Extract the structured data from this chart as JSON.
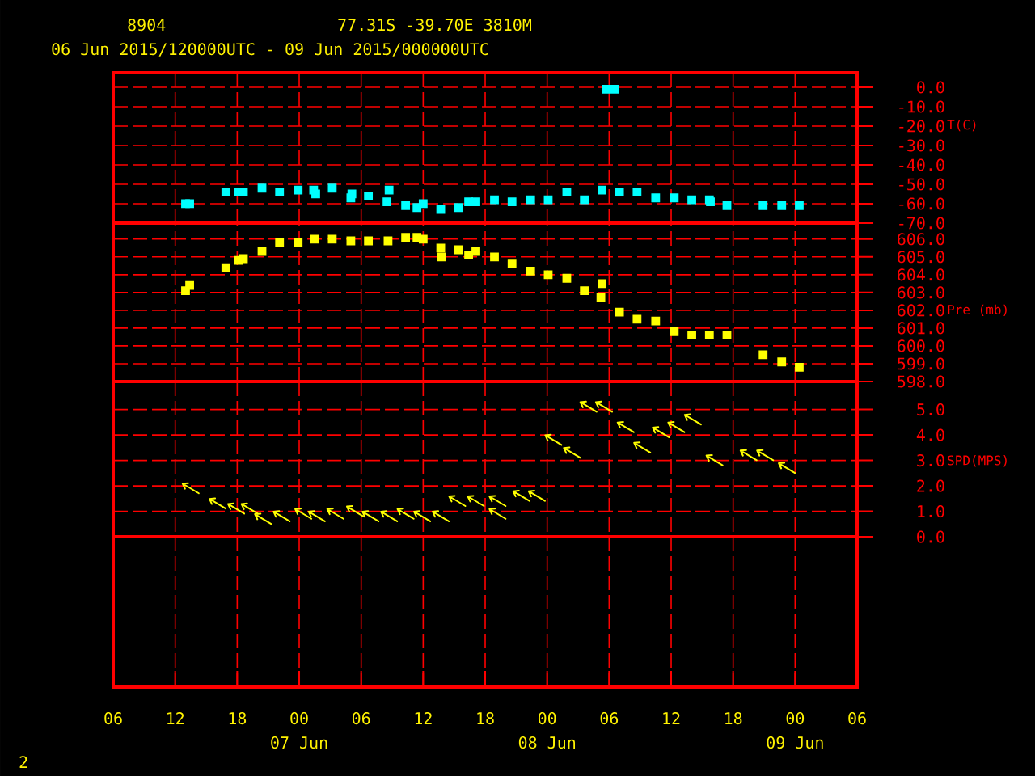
{
  "chart_data": [
    {
      "type": "scatter",
      "title": "8904",
      "subtitle": "06 Jun 2015/120000UTC - 09 Jun 2015/000000UTC",
      "annotations": [
        "77.31S -39.70E 3810M"
      ],
      "ylabel": "T(C)",
      "marker": "square",
      "grid": true,
      "tick_labels": "y",
      "xlim": [
        6,
        78
      ],
      "xticks": [
        {
          "value": 6,
          "label": null
        },
        {
          "value": 12,
          "label": null
        },
        {
          "value": 18,
          "label": null
        },
        {
          "value": 24,
          "label": null
        },
        {
          "value": 30,
          "label": null
        },
        {
          "value": 36,
          "label": null
        },
        {
          "value": 42,
          "label": null
        },
        {
          "value": 48,
          "label": null
        },
        {
          "value": 54,
          "label": null
        },
        {
          "value": 60,
          "label": null
        },
        {
          "value": 66,
          "label": null
        },
        {
          "value": 72,
          "label": null
        },
        {
          "value": 78,
          "label": null
        }
      ],
      "ylim": [
        -70,
        7.5
      ],
      "yticks": [
        {
          "value": 0,
          "label": "0.0"
        },
        {
          "value": -10,
          "label": "-10.0"
        },
        {
          "value": -20,
          "label": "-20.0"
        },
        {
          "value": -30,
          "label": "-30.0"
        },
        {
          "value": -40,
          "label": "-40.0"
        },
        {
          "value": -50,
          "label": "-50.0"
        },
        {
          "value": -60,
          "label": "-60.0"
        },
        {
          "value": -70,
          "label": "-70.0"
        }
      ],
      "series": [
        {
          "color": "#00ffff",
          "x": [
            13.0,
            13.4,
            16.9,
            18.1,
            18.6,
            20.4,
            22.1,
            23.9,
            25.4,
            25.6,
            27.2,
            29.0,
            29.1,
            30.7,
            32.5,
            32.7,
            34.3,
            35.4,
            36.0,
            37.7,
            39.4,
            40.4,
            41.1,
            42.9,
            44.6,
            46.4,
            48.1,
            49.9,
            51.6,
            53.3,
            53.7,
            54.5,
            55.0,
            56.7,
            58.5,
            60.3,
            62.0,
            63.7,
            63.8,
            65.4,
            68.9,
            70.7,
            72.4
          ],
          "values": [
            -60,
            -60,
            -54,
            -54,
            -54,
            -52,
            -54,
            -53,
            -53,
            -55,
            -52,
            -57,
            -55,
            -56,
            -59,
            -53,
            -61,
            -62,
            -60,
            -63,
            -62,
            -59,
            -59,
            -58,
            -59,
            -58,
            -58,
            -54,
            -58,
            -53,
            -1,
            -1,
            -54,
            -54,
            -57,
            -57,
            -58,
            -58,
            -59,
            -61,
            -61,
            -61,
            -61
          ]
        }
      ]
    },
    {
      "type": "scatter",
      "ylabel": "Pre (mb)",
      "marker": "square",
      "grid": true,
      "tick_labels": "y",
      "xlim": [
        6,
        78
      ],
      "xticks": [
        {
          "value": 6,
          "label": null
        },
        {
          "value": 12,
          "label": null
        },
        {
          "value": 18,
          "label": null
        },
        {
          "value": 24,
          "label": null
        },
        {
          "value": 30,
          "label": null
        },
        {
          "value": 36,
          "label": null
        },
        {
          "value": 42,
          "label": null
        },
        {
          "value": 48,
          "label": null
        },
        {
          "value": 54,
          "label": null
        },
        {
          "value": 60,
          "label": null
        },
        {
          "value": 66,
          "label": null
        },
        {
          "value": 72,
          "label": null
        },
        {
          "value": 78,
          "label": null
        }
      ],
      "ylim": [
        598,
        606.9
      ],
      "yticks": [
        {
          "value": 606,
          "label": "606.0"
        },
        {
          "value": 605,
          "label": "605.0"
        },
        {
          "value": 604,
          "label": "604.0"
        },
        {
          "value": 603,
          "label": "603.0"
        },
        {
          "value": 602,
          "label": "602.0"
        },
        {
          "value": 601,
          "label": "601.0"
        },
        {
          "value": 600,
          "label": "600.0"
        },
        {
          "value": 599,
          "label": "599.0"
        },
        {
          "value": 598,
          "label": "598.0"
        }
      ],
      "series": [
        {
          "color": "#ffff00",
          "x": [
            13.0,
            13.4,
            16.9,
            18.1,
            18.6,
            20.4,
            22.1,
            23.9,
            25.5,
            27.2,
            29.0,
            30.7,
            32.6,
            34.3,
            35.4,
            36.0,
            37.7,
            37.8,
            39.4,
            40.4,
            41.1,
            42.9,
            44.6,
            46.4,
            48.1,
            49.9,
            51.6,
            53.3,
            53.2,
            55.0,
            56.7,
            58.5,
            60.3,
            62.0,
            63.7,
            65.4,
            68.9,
            70.7,
            72.4
          ],
          "values": [
            603.1,
            603.4,
            604.4,
            604.8,
            604.9,
            605.3,
            605.8,
            605.8,
            606.0,
            606.0,
            605.9,
            605.9,
            605.9,
            606.1,
            606.1,
            606.0,
            605.5,
            605.0,
            605.4,
            605.1,
            605.3,
            605.0,
            604.6,
            604.2,
            604.0,
            603.8,
            603.1,
            603.5,
            602.7,
            601.9,
            601.5,
            601.4,
            600.8,
            600.6,
            600.6,
            600.6,
            599.5,
            599.1,
            598.8
          ]
        }
      ]
    },
    {
      "type": "scatter",
      "ylabel": "SPD(MPS)",
      "grid": true,
      "annotations": [
        "2"
      ],
      "xlim": [
        6,
        78
      ],
      "xticks": [
        {
          "value": 6,
          "label": "06"
        },
        {
          "value": 12,
          "label": "12"
        },
        {
          "value": 18,
          "label": "18"
        },
        {
          "value": 24,
          "label": "00"
        },
        {
          "value": 30,
          "label": "06"
        },
        {
          "value": 36,
          "label": "12"
        },
        {
          "value": 42,
          "label": "18"
        },
        {
          "value": 48,
          "label": "00"
        },
        {
          "value": 54,
          "label": "06"
        },
        {
          "value": 60,
          "label": "12"
        },
        {
          "value": 66,
          "label": "18"
        },
        {
          "value": 72,
          "label": "00"
        },
        {
          "value": 78,
          "label": "06"
        }
      ],
      "x2lim": [
        "2015-06-06T06:00",
        "2015-06-09T06:00"
      ],
      "x2ticks": [
        {
          "value": "2015-06-07",
          "label": "07 Jun"
        },
        {
          "value": "2015-06-08",
          "label": "08 Jun"
        },
        {
          "value": "2015-06-09",
          "label": "09 Jun"
        }
      ],
      "ylim": [
        -5.9,
        6.1
      ],
      "yticks": [
        {
          "value": 0,
          "label": "0.0"
        },
        {
          "value": 1,
          "label": "1.0"
        },
        {
          "value": 2,
          "label": "2.0"
        },
        {
          "value": 3,
          "label": "3.0"
        },
        {
          "value": 4,
          "label": "4.0"
        },
        {
          "value": 5,
          "label": "5.0"
        }
      ],
      "ref_lines": [
        {
          "axis": "y",
          "value": 0,
          "color": "#ff0000"
        }
      ],
      "series": [
        {
          "color": "#ffff00",
          "x": [
            13.5,
            16.1,
            17.9,
            19.2,
            20.5,
            22.3,
            24.4,
            25.7,
            27.5,
            29.4,
            30.9,
            32.7,
            34.3,
            35.9,
            37.7,
            39.3,
            41.1,
            43.2,
            43.2,
            45.5,
            47.0,
            48.6,
            50.4,
            52.0,
            53.5,
            55.6,
            57.2,
            59.0,
            60.5,
            62.1,
            64.2,
            67.5,
            69.1,
            71.2
          ],
          "values": [
            1.9,
            1.3,
            1.1,
            1.1,
            0.7,
            0.8,
            0.9,
            0.8,
            0.9,
            1.0,
            0.8,
            0.8,
            0.9,
            0.8,
            0.8,
            1.4,
            1.4,
            1.4,
            0.9,
            1.6,
            1.6,
            3.8,
            3.3,
            5.1,
            5.1,
            4.3,
            3.5,
            4.1,
            4.3,
            4.6,
            3.0,
            3.2,
            3.2,
            2.7
          ]
        }
      ]
    }
  ]
}
